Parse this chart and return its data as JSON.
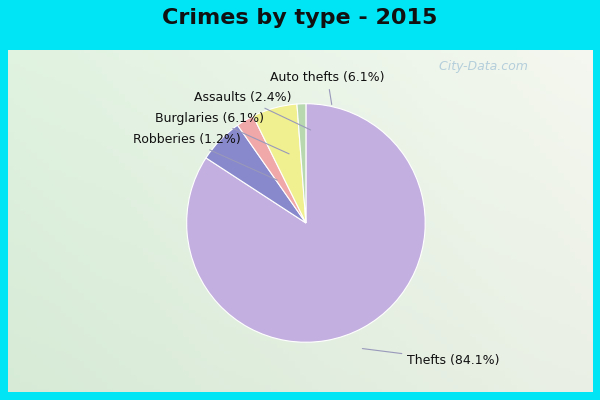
{
  "title": "Crimes by type - 2015",
  "labels": [
    "Thefts",
    "Auto thefts",
    "Assaults",
    "Burglaries",
    "Robberies"
  ],
  "values": [
    84.1,
    6.1,
    2.4,
    6.1,
    1.2
  ],
  "colors": [
    "#c4b0e0",
    "#8888cc",
    "#f0a8a8",
    "#f0f090",
    "#b8d8b0"
  ],
  "label_texts": [
    "Thefts (84.1%)",
    "Auto thefts (6.1%)",
    "Assaults (2.4%)",
    "Burglaries (6.1%)",
    "Robberies (1.2%)"
  ],
  "background_top": "#00e5f5",
  "background_main_top": "#dff5ec",
  "background_main_bottom": "#d0ecd8",
  "title_fontsize": 16,
  "label_fontsize": 9,
  "watermark": "  City-Data.com",
  "watermark_color": "#aac8d8"
}
